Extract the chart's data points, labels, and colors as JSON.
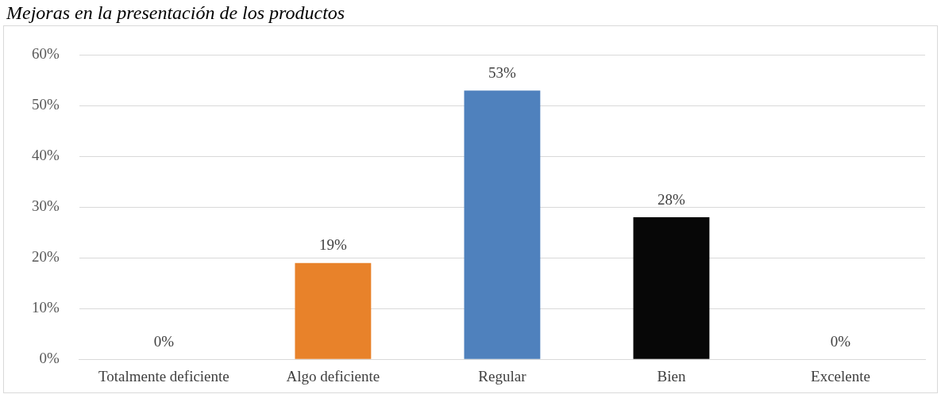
{
  "chart_data": {
    "type": "bar",
    "title": "Mejoras en la presentación de los productos",
    "categories": [
      "Totalmente deficiente",
      "Algo deficiente",
      "Regular",
      "Bien",
      "Excelente"
    ],
    "values": [
      0,
      19,
      53,
      28,
      0
    ],
    "colors": [
      "#f28e2b",
      "#e8822a",
      "#4f81bd",
      "#070707",
      "#a5a5a5"
    ],
    "value_labels": [
      "0%",
      "19%",
      "53%",
      "28%",
      "0%"
    ],
    "ylim": [
      0,
      60
    ],
    "yticks": [
      {
        "value": 0,
        "label": "0%"
      },
      {
        "value": 10,
        "label": "10%"
      },
      {
        "value": 20,
        "label": "20%"
      },
      {
        "value": 30,
        "label": "30%"
      },
      {
        "value": 40,
        "label": "40%"
      },
      {
        "value": 50,
        "label": "50%"
      },
      {
        "value": 60,
        "label": "60%"
      }
    ],
    "grid": "y",
    "legend": false
  }
}
